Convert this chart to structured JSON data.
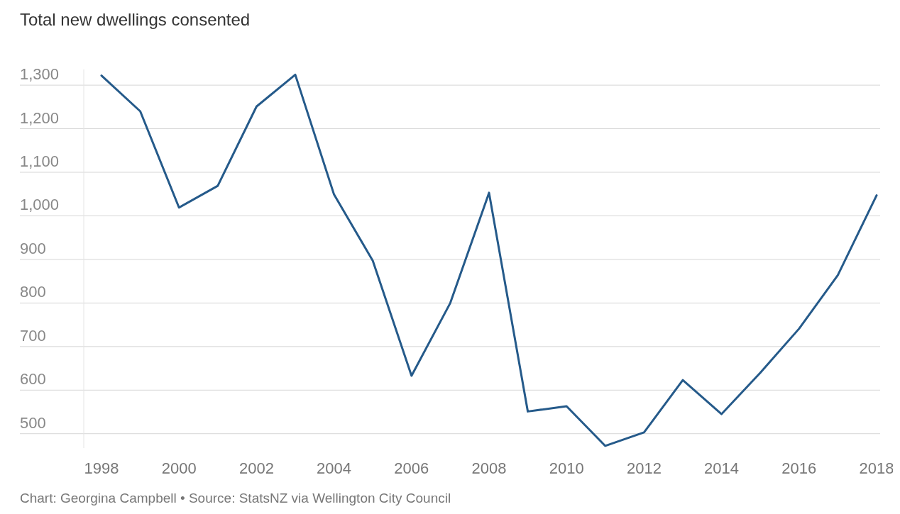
{
  "chart_data": {
    "type": "line",
    "title": "Total new dwellings consented",
    "x": [
      1998,
      1999,
      2000,
      2001,
      2002,
      2003,
      2004,
      2005,
      2006,
      2007,
      2008,
      2009,
      2010,
      2011,
      2012,
      2013,
      2014,
      2015,
      2016,
      2017,
      2018
    ],
    "series": [
      {
        "color": "#255a8a",
        "values": [
          1322,
          1240,
          1019,
          1069,
          1251,
          1324,
          1049,
          897,
          633,
          800,
          1053,
          551,
          563,
          472,
          503,
          623,
          545,
          640,
          741,
          864,
          1047
        ]
      }
    ],
    "xlim": [
      1998,
      2018
    ],
    "xticks": [
      1998,
      2000,
      2002,
      2004,
      2006,
      2008,
      2010,
      2012,
      2014,
      2016,
      2018
    ],
    "ylim": [
      467,
      1336
    ],
    "yticks": [
      {
        "value": 500,
        "label": "500"
      },
      {
        "value": 600,
        "label": "600"
      },
      {
        "value": 700,
        "label": "700"
      },
      {
        "value": 800,
        "label": "800"
      },
      {
        "value": 900,
        "label": "900"
      },
      {
        "value": 1000,
        "label": "1,000"
      },
      {
        "value": 1100,
        "label": "1,100"
      },
      {
        "value": 1200,
        "label": "1,200"
      },
      {
        "value": 1300,
        "label": "1,300"
      }
    ],
    "grid": "y",
    "marker": "none",
    "line_style": "solid",
    "annotations": [
      "Chart: Georgina Campbell • Source: StatsNZ via Wellington City Council"
    ]
  }
}
